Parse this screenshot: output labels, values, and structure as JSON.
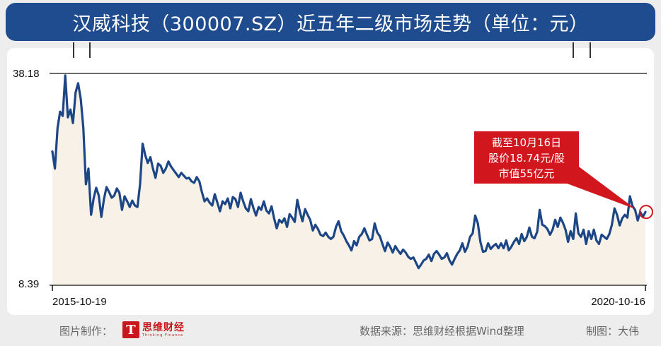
{
  "title": "汉威科技（300007.SZ）近五年二级市场走势（单位：元）",
  "chart_data": {
    "type": "area",
    "x_start": "2015-10-19",
    "x_end": "2020-10-16",
    "y_tick_labels": [
      "38.18",
      "8.39"
    ],
    "ylim": [
      8.39,
      38.18
    ],
    "grid": false,
    "annotation": [
      "截至10月16日",
      "股价18.74元/股",
      "市值55亿元"
    ],
    "last_value": 18.74,
    "series": [
      {
        "values": [
          27.2,
          24.8,
          30.5,
          32.8,
          32.2,
          37.9,
          32.0,
          33.1,
          31.2,
          35.5,
          36.8,
          34.6,
          30.6,
          22.6,
          24.8,
          18.3,
          20.6,
          22.1,
          21.0,
          18.0,
          20.5,
          22.2,
          21.5,
          20.7,
          21.0,
          22.0,
          21.4,
          19.0,
          20.9,
          20.2,
          19.4,
          20.3,
          19.6,
          19.4,
          22.6,
          28.3,
          26.7,
          25.6,
          26.4,
          24.8,
          23.5,
          25.5,
          25.2,
          24.2,
          24.8,
          25.8,
          25.1,
          24.6,
          24.1,
          23.6,
          24.2,
          23.8,
          23.4,
          23.5,
          23.0,
          22.8,
          23.6,
          23.0,
          21.5,
          20.2,
          20.6,
          20.0,
          19.6,
          21.2,
          20.0,
          18.8,
          20.2,
          19.8,
          20.6,
          19.2,
          20.8,
          20.5,
          19.4,
          21.4,
          20.2,
          19.2,
          18.8,
          20.5,
          19.2,
          18.2,
          19.4,
          19.0,
          20.2,
          18.9,
          18.5,
          19.5,
          17.8,
          16.4,
          17.6,
          17.2,
          17.8,
          16.6,
          18.4,
          17.9,
          17.3,
          20.4,
          18.7,
          17.4,
          19.1,
          18.3,
          17.6,
          16.1,
          16.9,
          16.3,
          15.5,
          15.3,
          15.8,
          15.2,
          14.9,
          15.2,
          16.6,
          17.4,
          16.0,
          15.4,
          14.6,
          14.0,
          13.3,
          14.6,
          14.0,
          15.2,
          15.6,
          16.4,
          15.5,
          14.7,
          14.9,
          17.1,
          15.8,
          15.3,
          14.2,
          13.2,
          14.4,
          13.8,
          13.0,
          13.9,
          13.3,
          12.8,
          13.4,
          13.0,
          12.4,
          12.1,
          12.3,
          11.6,
          10.8,
          11.3,
          11.9,
          12.1,
          12.7,
          11.8,
          12.8,
          13.2,
          12.7,
          12.1,
          12.3,
          12.9,
          11.9,
          11.3,
          12.1,
          12.8,
          13.3,
          14.3,
          13.1,
          13.8,
          15.2,
          15.7,
          18.2,
          17.1,
          14.5,
          13.1,
          13.2,
          14.3,
          13.5,
          13.9,
          14.2,
          13.6,
          14.3,
          13.6,
          14.7,
          13.3,
          13.8,
          14.5,
          15.0,
          14.2,
          15.6,
          14.6,
          15.2,
          16.5,
          15.2,
          15.0,
          15.9,
          19.0,
          16.9,
          16.7,
          16.3,
          15.5,
          16.2,
          17.6,
          16.6,
          17.9,
          17.2,
          16.2,
          14.5,
          16.0,
          14.9,
          18.5,
          15.7,
          15.2,
          16.2,
          14.2,
          16.0,
          14.9,
          16.2,
          14.7,
          14.2,
          15.5,
          15.2,
          14.9,
          15.6,
          16.9,
          19.2,
          18.3,
          16.8,
          17.8,
          18.3,
          17.9,
          20.9,
          19.5,
          19.0,
          17.5,
          18.7,
          18.0,
          18.7
        ]
      }
    ]
  },
  "axis": {
    "x_start_label": "2015-10-19",
    "x_end_label": "2020-10-16"
  },
  "footer": {
    "credit_label": "图片制作：",
    "logo_cn": "思维财经",
    "logo_en": "Thinking Finance",
    "logo_mark": "T",
    "source": "数据来源：思维财经根据Wind整理",
    "maker": "制图：大伟"
  },
  "colors": {
    "title_bg": "#1f4b8f",
    "line": "#1c4685",
    "area_fill": "#f7f1e8",
    "callout_bg": "#d2161e",
    "background": "#ededed"
  }
}
